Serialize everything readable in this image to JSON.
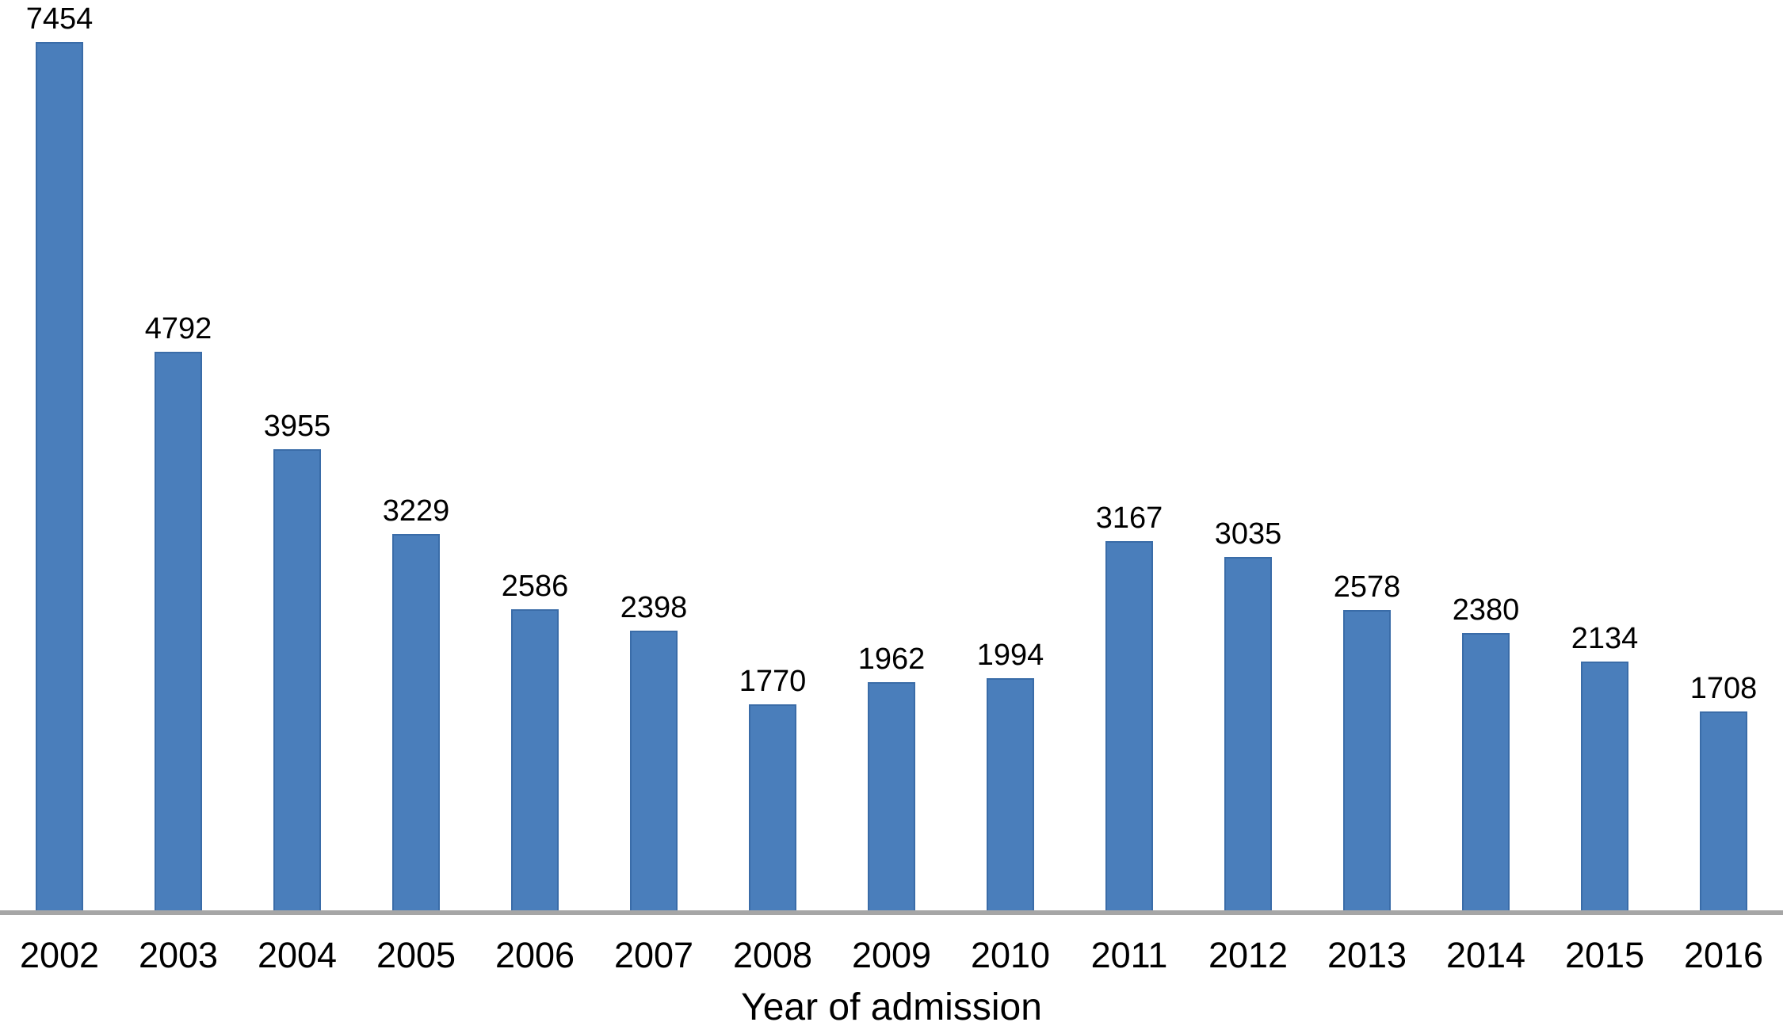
{
  "chart_data": {
    "type": "bar",
    "categories": [
      "2002",
      "2003",
      "2004",
      "2005",
      "2006",
      "2007",
      "2008",
      "2009",
      "2010",
      "2011",
      "2012",
      "2013",
      "2014",
      "2015",
      "2016"
    ],
    "values": [
      7454,
      4792,
      3955,
      3229,
      2586,
      2398,
      1770,
      1962,
      1994,
      3167,
      3035,
      2578,
      2380,
      2134,
      1708
    ],
    "title": "",
    "xlabel": "Year of admission",
    "ylabel": "",
    "ylim": [
      0,
      7454
    ],
    "grid": false,
    "legend": false,
    "data_labels": true,
    "bar_color": "#4A7EBB",
    "bar_border_color": "#3A6CA8",
    "axis_line_color": "#A6A6A6",
    "label_color": "#000000"
  }
}
